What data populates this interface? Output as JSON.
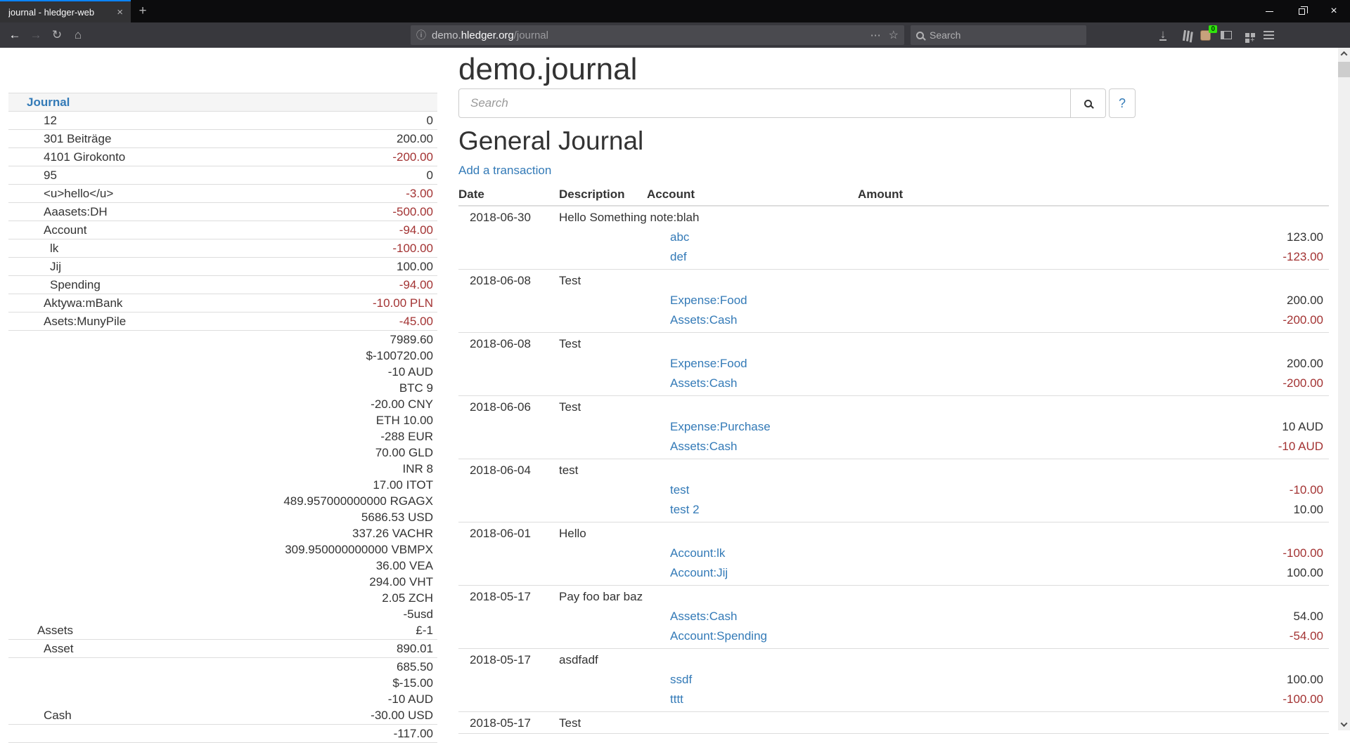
{
  "browser": {
    "tab": {
      "title": "journal - hledger-web"
    },
    "url": {
      "prefix": "demo.",
      "domain": "hledger.org",
      "path": "/journal"
    },
    "search_placeholder": "Search",
    "extension_badge": "0",
    "icons": {
      "back": "←",
      "forward": "→",
      "reload": "↻",
      "home": "⌂",
      "info": "ⓘ",
      "dots": "⋯",
      "star": "☆",
      "downloads": "↓",
      "close": "×",
      "new_tab": "+"
    }
  },
  "page": {
    "title": "demo.journal",
    "search": {
      "placeholder": "Search",
      "help_label": "?"
    },
    "journal_heading": "General Journal",
    "add_transaction_label": "Add a transaction",
    "table_headers": {
      "date": "Date",
      "description": "Description",
      "account": "Account",
      "amount": "Amount"
    }
  },
  "sidebar": {
    "header": "Journal",
    "rows": [
      {
        "name": "12",
        "indent": 1,
        "amounts": [
          {
            "t": "0",
            "neg": false
          }
        ]
      },
      {
        "name": "301 Beiträge",
        "indent": 1,
        "amounts": [
          {
            "t": "200.00",
            "neg": false
          }
        ]
      },
      {
        "name": "4101 Girokonto",
        "indent": 1,
        "amounts": [
          {
            "t": "-200.00",
            "neg": true
          }
        ]
      },
      {
        "name": "95",
        "indent": 1,
        "amounts": [
          {
            "t": "0",
            "neg": false
          }
        ]
      },
      {
        "name": "<u>hello</u>",
        "indent": 1,
        "amounts": [
          {
            "t": "-3.00",
            "neg": true
          }
        ]
      },
      {
        "name": "Aaasets:DH",
        "indent": 1,
        "amounts": [
          {
            "t": "-500.00",
            "neg": true
          }
        ]
      },
      {
        "name": "Account",
        "indent": 1,
        "amounts": [
          {
            "t": "-94.00",
            "neg": true
          }
        ]
      },
      {
        "name": "lk",
        "indent": 2,
        "amounts": [
          {
            "t": "-100.00",
            "neg": true
          }
        ]
      },
      {
        "name": "Jij",
        "indent": 2,
        "amounts": [
          {
            "t": "100.00",
            "neg": false
          }
        ]
      },
      {
        "name": "Spending",
        "indent": 2,
        "amounts": [
          {
            "t": "-94.00",
            "neg": true
          }
        ]
      },
      {
        "name": "Aktywa:mBank",
        "indent": 1,
        "amounts": [
          {
            "t": "-10.00 PLN",
            "neg": true
          }
        ]
      },
      {
        "name": "Asets:MunyPile",
        "indent": 1,
        "amounts": [
          {
            "t": "-45.00",
            "neg": true
          }
        ]
      },
      {
        "name": "Assets",
        "indent": 0,
        "amounts": [
          {
            "t": "7989.60",
            "neg": false
          },
          {
            "t": "$-100720.00",
            "neg": false
          },
          {
            "t": "-10 AUD",
            "neg": false
          },
          {
            "t": "BTC 9",
            "neg": false
          },
          {
            "t": "-20.00 CNY",
            "neg": false
          },
          {
            "t": "ETH 10.00",
            "neg": false
          },
          {
            "t": "-288 EUR",
            "neg": false
          },
          {
            "t": "70.00 GLD",
            "neg": false
          },
          {
            "t": "INR 8",
            "neg": false
          },
          {
            "t": "17.00 ITOT",
            "neg": false
          },
          {
            "t": "489.957000000000 RGAGX",
            "neg": false
          },
          {
            "t": "5686.53 USD",
            "neg": false
          },
          {
            "t": "337.26 VACHR",
            "neg": false
          },
          {
            "t": "309.950000000000 VBMPX",
            "neg": false
          },
          {
            "t": "36.00 VEA",
            "neg": false
          },
          {
            "t": "294.00 VHT",
            "neg": false
          },
          {
            "t": "2.05 ZCH",
            "neg": false
          },
          {
            "t": "-5usd",
            "neg": false
          },
          {
            "t": "£-1",
            "neg": false
          }
        ]
      },
      {
        "name": "Asset",
        "indent": 1,
        "amounts": [
          {
            "t": "890.01",
            "neg": false
          }
        ]
      },
      {
        "name": "Cash",
        "indent": 1,
        "amounts": [
          {
            "t": "685.50",
            "neg": false
          },
          {
            "t": "$-15.00",
            "neg": false
          },
          {
            "t": "-10 AUD",
            "neg": false
          },
          {
            "t": "-30.00 USD",
            "neg": false
          }
        ]
      },
      {
        "name": "",
        "indent": 1,
        "amounts": [
          {
            "t": "-117.00",
            "neg": false
          }
        ]
      }
    ]
  },
  "journal": {
    "transactions": [
      {
        "date": "2018-06-30",
        "description": "Hello Something note:blah",
        "postings": [
          {
            "account": "abc",
            "amount": "123.00",
            "neg": false
          },
          {
            "account": "def",
            "amount": "-123.00",
            "neg": true
          }
        ]
      },
      {
        "date": "2018-06-08",
        "description": "Test",
        "postings": [
          {
            "account": "Expense:Food",
            "amount": "200.00",
            "neg": false
          },
          {
            "account": "Assets:Cash",
            "amount": "-200.00",
            "neg": true
          }
        ]
      },
      {
        "date": "2018-06-08",
        "description": "Test",
        "postings": [
          {
            "account": "Expense:Food",
            "amount": "200.00",
            "neg": false
          },
          {
            "account": "Assets:Cash",
            "amount": "-200.00",
            "neg": true
          }
        ]
      },
      {
        "date": "2018-06-06",
        "description": "Test",
        "postings": [
          {
            "account": "Expense:Purchase",
            "amount": "10 AUD",
            "neg": false
          },
          {
            "account": "Assets:Cash",
            "amount": "-10 AUD",
            "neg": true
          }
        ]
      },
      {
        "date": "2018-06-04",
        "description": "test",
        "postings": [
          {
            "account": "test",
            "amount": "-10.00",
            "neg": true
          },
          {
            "account": "test 2",
            "amount": "10.00",
            "neg": false
          }
        ]
      },
      {
        "date": "2018-06-01",
        "description": "Hello",
        "postings": [
          {
            "account": "Account:lk",
            "amount": "-100.00",
            "neg": true
          },
          {
            "account": "Account:Jij",
            "amount": "100.00",
            "neg": false
          }
        ]
      },
      {
        "date": "2018-05-17",
        "description": "Pay foo bar baz",
        "postings": [
          {
            "account": "Assets:Cash",
            "amount": "54.00",
            "neg": false
          },
          {
            "account": "Account:Spending",
            "amount": "-54.00",
            "neg": true
          }
        ]
      },
      {
        "date": "2018-05-17",
        "description": "asdfadf",
        "postings": [
          {
            "account": "ssdf",
            "amount": "100.00",
            "neg": false
          },
          {
            "account": "tttt",
            "amount": "-100.00",
            "neg": true
          }
        ]
      },
      {
        "date": "2018-05-17",
        "description": "Test",
        "postings": []
      }
    ]
  },
  "colors": {
    "link_blue": "#337ab7",
    "negative_red": "#a33333",
    "table_border": "#dddddd",
    "tab_accent": "#0a84ff",
    "badge_green": "#30e60b"
  }
}
